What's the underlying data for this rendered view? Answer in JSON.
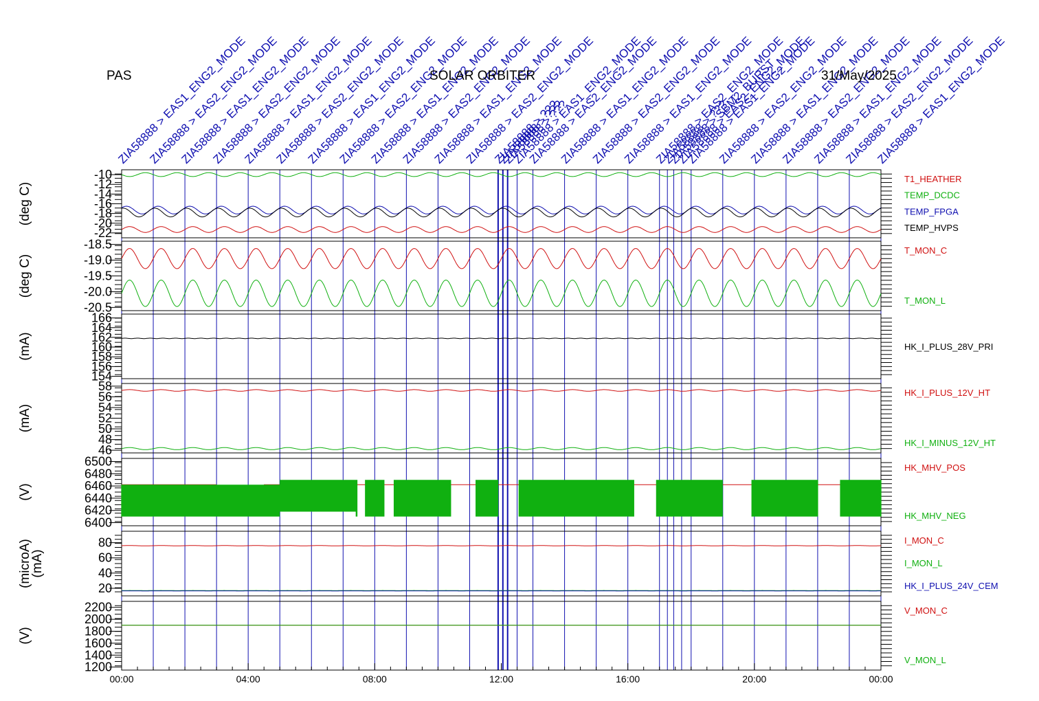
{
  "header": {
    "left": "PAS",
    "center": "SOLAR ORBITER",
    "right": "31/May/2025"
  },
  "colors": {
    "red": "#d01010",
    "green": "#10b010",
    "blue": "#1010b0",
    "black": "#000000"
  },
  "chart_data": [
    {
      "type": "line",
      "ylabel": "(deg C)",
      "yticks": [
        "-10",
        "-12",
        "-14",
        "-16",
        "-18",
        "-20",
        "-22"
      ],
      "ylim": [
        -23,
        -9
      ],
      "series": [
        {
          "name": "T1_HEATHER",
          "color": "red",
          "base": -21.3,
          "amp": 0.6,
          "cycles": 24,
          "phase": 0.0
        },
        {
          "name": "TEMP_DCDC",
          "color": "green",
          "base": -10.0,
          "amp": 0.4,
          "cycles": 24,
          "phase": 0.5
        },
        {
          "name": "TEMP_FPGA",
          "color": "blue",
          "base": -17.3,
          "amp": 0.8,
          "cycles": 24,
          "phase": 0.1
        },
        {
          "name": "TEMP_HVPS",
          "color": "black",
          "base": -17.8,
          "amp": 0.9,
          "cycles": 24,
          "phase": 0.2
        }
      ]
    },
    {
      "type": "line",
      "ylabel": "(deg C)",
      "yticks": [
        "-18.5",
        "-19.0",
        "-19.5",
        "-20.0",
        "-20.5"
      ],
      "ylim": [
        -20.6,
        -18.4
      ],
      "series": [
        {
          "name": "T_MON_C",
          "color": "red",
          "base": -18.95,
          "amp": 0.32,
          "cycles": 24,
          "phase": 0.0
        },
        {
          "name": "T_MON_L",
          "color": "green",
          "base": -20.05,
          "amp": 0.42,
          "cycles": 24,
          "phase": 0.0
        }
      ]
    },
    {
      "type": "line",
      "ylabel": "(mA)",
      "yticks": [
        "166",
        "164",
        "162",
        "160",
        "158",
        "156",
        "154"
      ],
      "ylim": [
        153.5,
        166.8
      ],
      "series": [
        {
          "name": "HK_I_PLUS_28V_PRI",
          "color": "black",
          "base": 161.8,
          "amp": 0.05,
          "cycles": 60,
          "phase": 0.0
        }
      ]
    },
    {
      "type": "line",
      "ylabel": "(mA)",
      "yticks": [
        "58",
        "56",
        "54",
        "52",
        "50",
        "48",
        "46"
      ],
      "ylim": [
        45.5,
        58.5
      ],
      "series": [
        {
          "name": "HK_I_PLUS_12V_HT",
          "color": "red",
          "base": 57.2,
          "amp": 0.15,
          "cycles": 24,
          "phase": 0.0
        },
        {
          "name": "HK_I_MINUS_12V_HT",
          "color": "green",
          "base": 46.3,
          "amp": 0.2,
          "cycles": 24,
          "phase": 0.0
        }
      ]
    },
    {
      "type": "area",
      "ylabel": "(V)",
      "yticks": [
        "6500",
        "6480",
        "6460",
        "6440",
        "6420",
        "6400"
      ],
      "ylim": [
        6395,
        6505
      ],
      "series": [
        {
          "name": "HK_MHV_POS",
          "color": "red",
          "base": 6462,
          "amp": 0,
          "cycles": 0,
          "phase": 0.0
        },
        {
          "name": "HK_MHV_NEG",
          "color": "green",
          "base": 6440,
          "amp": 30,
          "cycles": 0,
          "phase": 0.0
        }
      ]
    },
    {
      "type": "line",
      "ylabel": "(microA)",
      "ylabel2": "(mA)",
      "yticks": [
        "80",
        "60",
        "40",
        "20"
      ],
      "ylim": [
        10,
        95
      ],
      "series": [
        {
          "name": "I_MON_C",
          "color": "red",
          "base": 76,
          "amp": 0.2,
          "cycles": 24,
          "phase": 0.0
        },
        {
          "name": "I_MON_L",
          "color": "green",
          "base": 17,
          "amp": 0.1,
          "cycles": 24,
          "phase": 0.0
        },
        {
          "name": "HK_I_PLUS_24V_CEM",
          "color": "blue",
          "base": 16.5,
          "amp": 0.05,
          "cycles": 24,
          "phase": 0.0
        }
      ]
    },
    {
      "type": "line",
      "ylabel": "(V)",
      "yticks": [
        "2200",
        "2000",
        "1800",
        "1600",
        "1400",
        "1200"
      ],
      "ylim": [
        1150,
        2300
      ],
      "series": [
        {
          "name": "V_MON_C",
          "color": "red",
          "base": 1900,
          "amp": 0,
          "cycles": 0,
          "phase": 0.0
        },
        {
          "name": "V_MON_L",
          "color": "green",
          "base": 1900,
          "amp": 0,
          "cycles": 0,
          "phase": 0.0
        }
      ]
    }
  ],
  "x_axis": {
    "ticks": [
      "00:00",
      "04:00",
      "08:00",
      "12:00",
      "16:00",
      "20:00",
      "00:00"
    ],
    "hours": [
      0,
      4,
      8,
      12,
      16,
      20,
      24
    ]
  },
  "events": {
    "hours": [
      0,
      1,
      2,
      3,
      4,
      5,
      6,
      7,
      8,
      9,
      10,
      11,
      11.9,
      12.05,
      12.2,
      12.5,
      13,
      14,
      15,
      16,
      17,
      17.25,
      17.45,
      17.7,
      18,
      19,
      20,
      21,
      22,
      23,
      24
    ],
    "labels": [
      "ZIA58888 > EAS1_ENG2_MODE",
      "ZIA58888 > EAS2_ENG2_MODE",
      "ZIA58888 > EAS1_ENG2_MODE",
      "ZIA58888 > EAS2_ENG2_MODE",
      "ZIA58888 > EAS1_ENG2_MODE",
      "ZIA58888 > EAS2_ENG2_MODE",
      "ZIA58888 > EAS1_ENG2_MODE",
      "ZIA58888 > EAS2_ENG2_MODE",
      "ZIA58888 > EAS1_ENG2_MODE",
      "ZIA58888 > EAS2_ENG2_MODE",
      "ZIA58888 > EAS1_ENG2_MODE",
      "ZIA58888 > EAS2_ENG2_MODE",
      "ZIA58888 > ???",
      "ZIA58888 > ???",
      "ZIA58888 > ???",
      "ZIA58888 > EAS1_ENG2_MODE",
      "ZIA58888 > EAS2_ENG2_MODE",
      "ZIA58888 > EAS1_ENG2_MODE",
      "ZIA58888 > EAS2_ENG2_MODE",
      "ZIA58888 > EAS1_ENG2_MODE",
      "ZIA58888 > EAS2_ENG2_MODE",
      "ZIA58888 > ???",
      "ZIA58888 > SBM2_BURST",
      "ZIA58888 > EAS2_ENG2_MODE",
      "ZIA58888 > EAS1_ENG2_MODE",
      "ZIA58888 > EAS2_ENG2_MODE",
      "ZIA58888 > EAS1_ENG2_MODE",
      "ZIA58888 > EAS2_ENG2_MODE",
      "ZIA58888 > EAS1_ENG2_MODE",
      "ZIA58888 > EAS2_ENG2_MODE",
      "ZIA58888 > EAS1_ENG2_MODE"
    ]
  }
}
